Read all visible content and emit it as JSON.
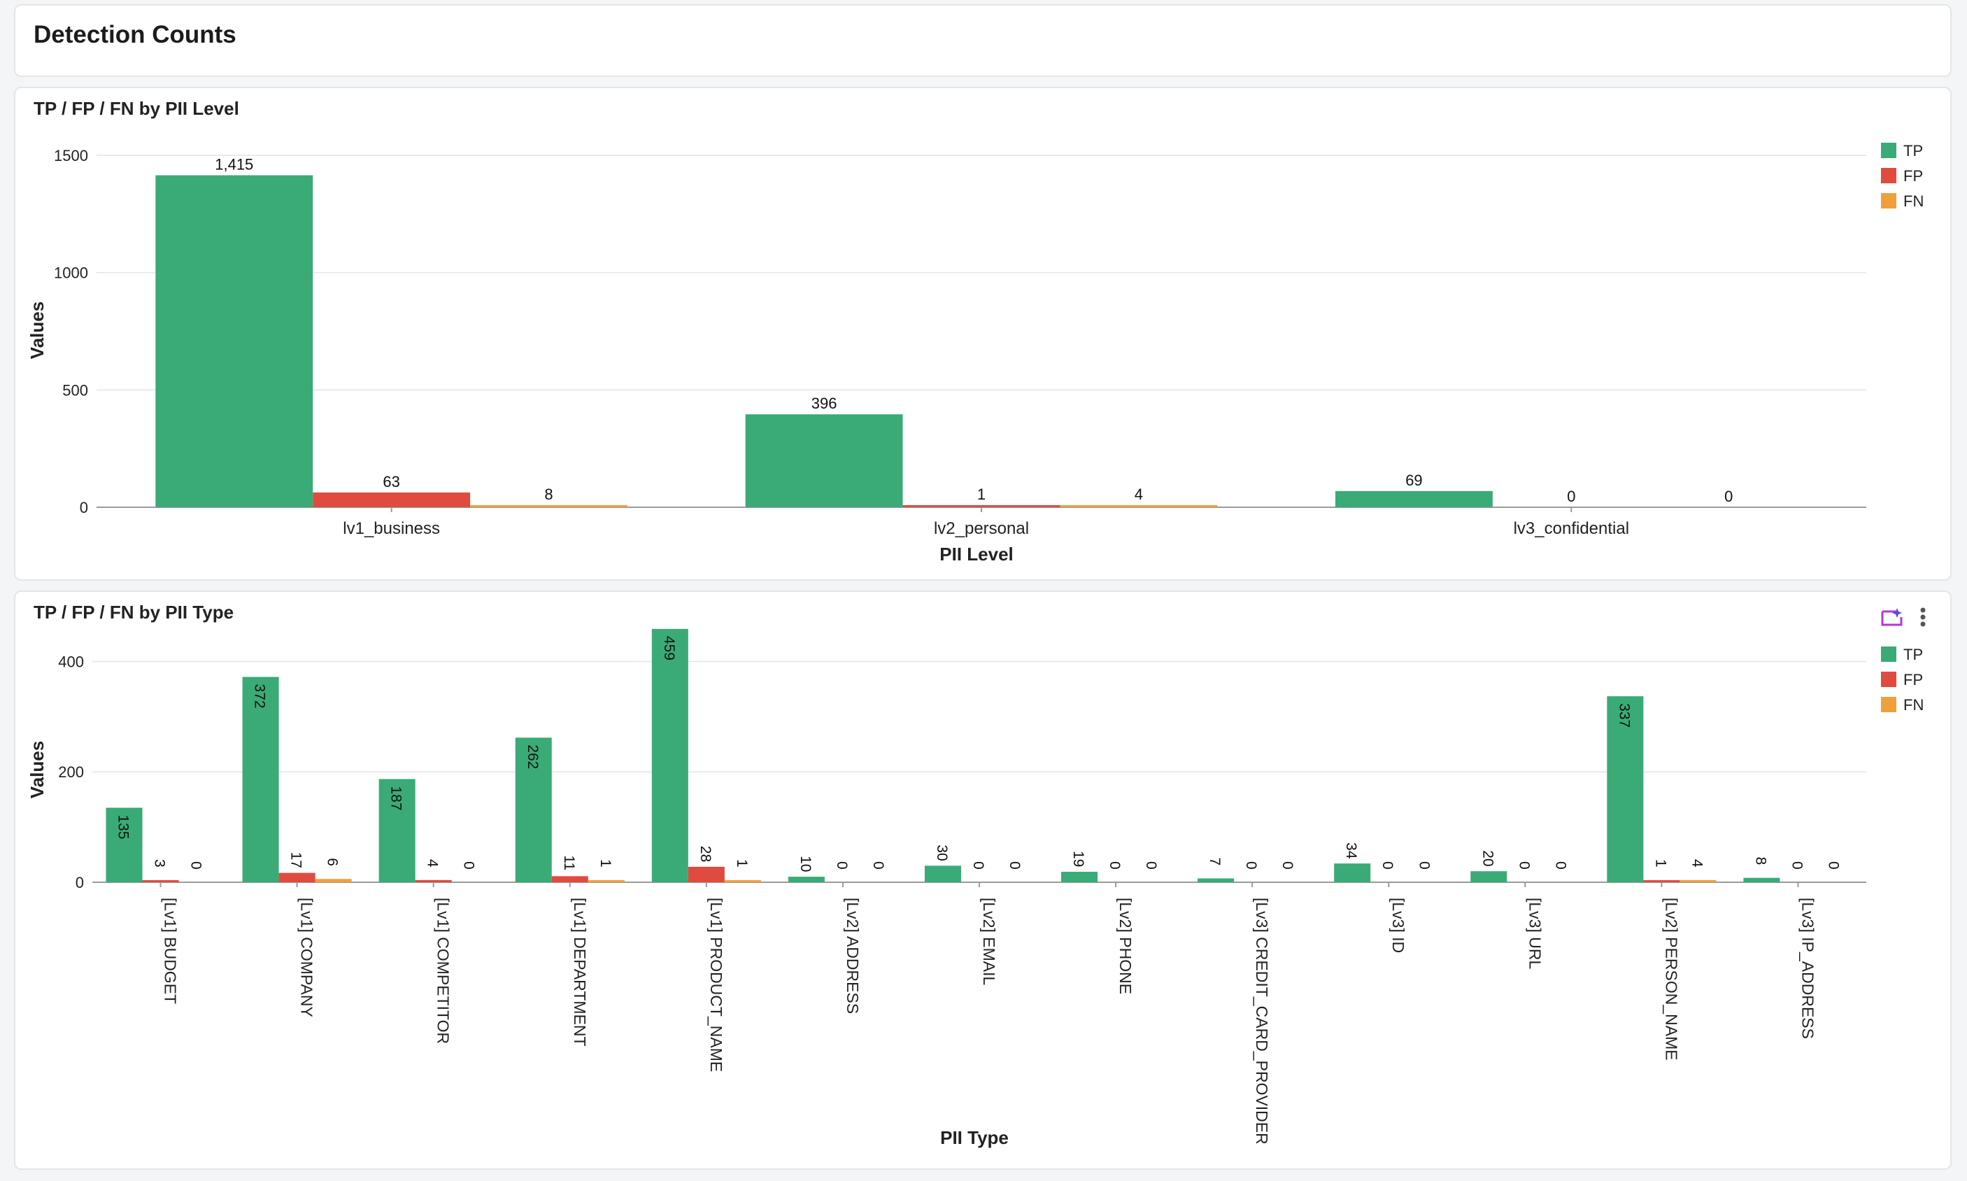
{
  "page": {
    "title": "Detection Counts"
  },
  "colors": {
    "TP": "#3aab76",
    "FP": "#e04b3f",
    "FN": "#f0a03b"
  },
  "chart_data": [
    {
      "type": "bar",
      "title": "TP / FP / FN by PII Level",
      "xlabel": "PII Level",
      "ylabel": "Values",
      "categories": [
        "lv1_business",
        "lv2_personal",
        "lv3_confidential"
      ],
      "series": [
        {
          "name": "TP",
          "values": [
            1415,
            396,
            69
          ]
        },
        {
          "name": "FP",
          "values": [
            63,
            1,
            0
          ]
        },
        {
          "name": "FN",
          "values": [
            8,
            4,
            0
          ]
        }
      ],
      "data_labels": [
        [
          "1,415",
          "396",
          "69"
        ],
        [
          "63",
          "1",
          "0"
        ],
        [
          "8",
          "4",
          "0"
        ]
      ],
      "yticks": [
        0,
        500,
        1000,
        1500
      ],
      "ylim": [
        0,
        1500
      ],
      "grid": true,
      "legend": "top-right"
    },
    {
      "type": "bar",
      "title": "TP / FP / FN by PII Type",
      "xlabel": "PII Type",
      "ylabel": "Values",
      "categories": [
        "[Lv1] BUDGET",
        "[Lv1] COMPANY",
        "[Lv1] COMPETITOR",
        "[Lv1] DEPARTMENT",
        "[Lv1] PRODUCT_NAME",
        "[Lv2] ADDRESS",
        "[Lv2] EMAIL",
        "[Lv2] PHONE",
        "[Lv3] CREDIT_CARD_PROVIDER",
        "[Lv3] ID",
        "[Lv3] URL",
        "[Lv2] PERSON_NAME",
        "[Lv3] IP_ADDRESS"
      ],
      "series": [
        {
          "name": "TP",
          "values": [
            135,
            372,
            187,
            262,
            459,
            10,
            30,
            19,
            7,
            34,
            20,
            337,
            8
          ]
        },
        {
          "name": "FP",
          "values": [
            3,
            17,
            4,
            11,
            28,
            0,
            0,
            0,
            0,
            0,
            0,
            1,
            0
          ]
        },
        {
          "name": "FN",
          "values": [
            0,
            6,
            0,
            1,
            1,
            0,
            0,
            0,
            0,
            0,
            0,
            4,
            0
          ]
        }
      ],
      "yticks": [
        0,
        200,
        400
      ],
      "ylim": [
        0,
        450
      ],
      "grid": true,
      "legend": "top-right",
      "actions": [
        "ai-insight-icon",
        "more-options-icon"
      ]
    }
  ]
}
